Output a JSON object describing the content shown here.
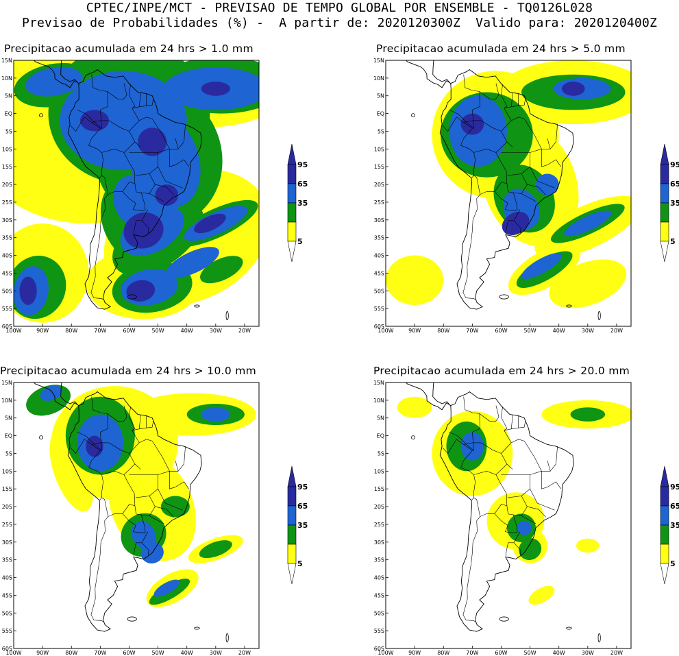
{
  "header": {
    "line1": "CPTEC/INPE/MCT - PREVISAO DE TEMPO GLOBAL POR ENSEMBLE - TQ0126L028",
    "line2": "Previsao de Probabilidades (%) -  A partir de: 2020120300Z  Valido para: 2020120400Z"
  },
  "axes": {
    "lat_ticks": [
      "15N",
      "10N",
      "5N",
      "EQ",
      "5S",
      "10S",
      "15S",
      "20S",
      "25S",
      "30S",
      "35S",
      "40S",
      "45S",
      "50S",
      "55S",
      "60S"
    ],
    "lon_ticks": [
      "100W",
      "90W",
      "80W",
      "70W",
      "60W",
      "50W",
      "40W",
      "30W",
      "20W"
    ]
  },
  "legend": {
    "labels": [
      "95",
      "65",
      "35",
      "5"
    ],
    "colors": {
      "c95": "#2a2aa0",
      "c65": "#1e64d2",
      "c35": "#0f9414",
      "c5": "#ffff14",
      "c0": "#ffffff"
    }
  },
  "panels": [
    {
      "title": "Precipitacao acumulada em 24 hrs > 1.0 mm"
    },
    {
      "title": "Precipitacao acumulada em 24 hrs > 5.0 mm"
    },
    {
      "title": "Precipitacao acumulada em 24 hrs > 10.0 mm"
    },
    {
      "title": "Precipitacao acumulada em 24 hrs > 20.0 mm"
    }
  ]
}
